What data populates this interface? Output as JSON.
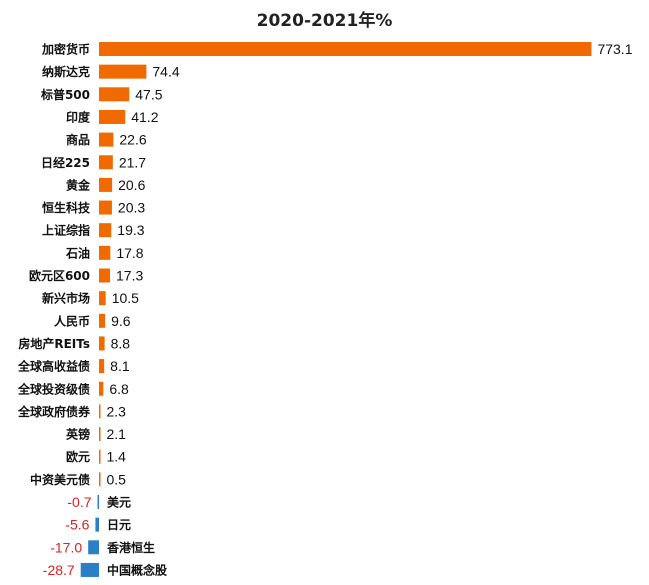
{
  "chart_data": {
    "type": "bar",
    "orientation": "horizontal",
    "title": "2020-2021年%",
    "categories": [
      "加密货币",
      "纳斯达克",
      "标普500",
      "印度",
      "商品",
      "日经225",
      "黄金",
      "恒生科技",
      "上证综指",
      "石油",
      "欧元区600",
      "新兴市场",
      "人民币",
      "房地产REITs",
      "全球高收益债",
      "全球投资级债",
      "全球政府债券",
      "英镑",
      "欧元",
      "中资美元债",
      "美元",
      "日元",
      "香港恒生",
      "中国概念股"
    ],
    "values": [
      773.1,
      74.4,
      47.5,
      41.2,
      22.6,
      21.7,
      20.6,
      20.3,
      19.3,
      17.8,
      17.3,
      10.5,
      9.6,
      8.8,
      8.1,
      6.8,
      2.3,
      2.1,
      1.4,
      0.5,
      -0.7,
      -5.6,
      -17.0,
      -28.7
    ],
    "value_labels": [
      "773.1",
      "74.4",
      "47.5",
      "41.2",
      "22.6",
      "21.7",
      "20.6",
      "20.3",
      "19.3",
      "17.8",
      "17.3",
      "10.5",
      "9.6",
      "8.8",
      "8.1",
      "6.8",
      "2.3",
      "2.1",
      "1.4",
      "0.5",
      "-0.7",
      "-5.6",
      "-17.0",
      "-28.7"
    ],
    "positive_color": "#F06A00",
    "negative_color": "#2B7FC4",
    "negative_label_color": "#E02020",
    "legend": "none",
    "grid": false
  }
}
